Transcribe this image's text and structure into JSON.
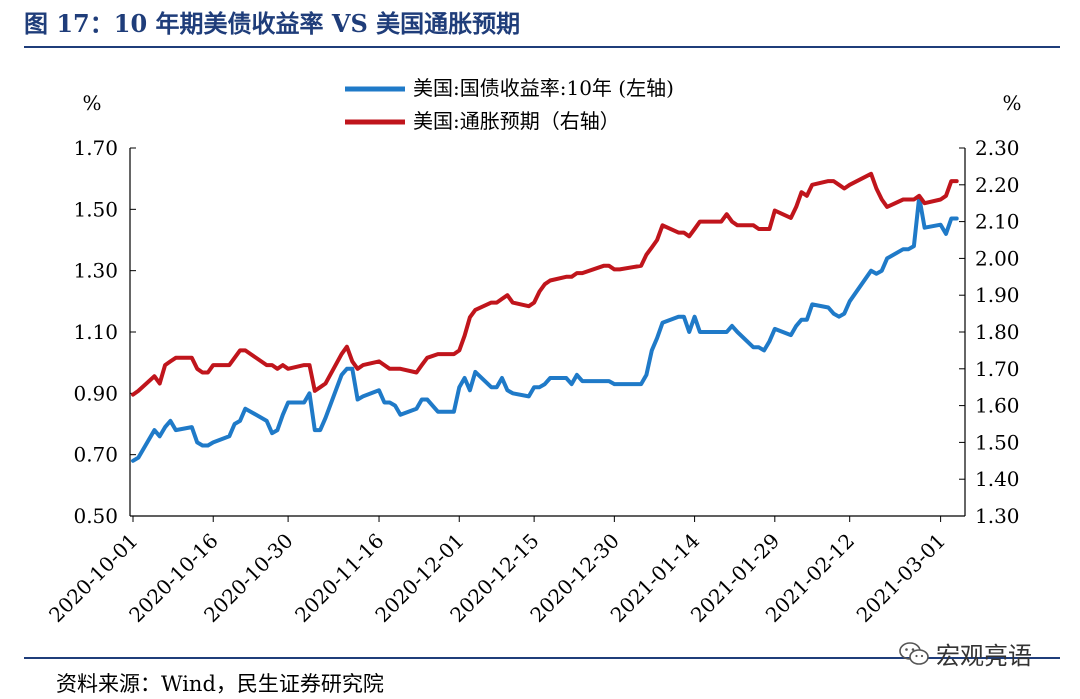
{
  "figure": {
    "title": "图 17：10 年期美债收益率 VS 美国通胀预期",
    "source": "资料来源：Wind，民生证券研究院",
    "watermark": "宏观亮语"
  },
  "colors": {
    "title": "#1f3d7a",
    "yield_line": "#1f7ac8",
    "inflation_line": "#c0151c",
    "rule": "#1f3d7a"
  },
  "chart_data": {
    "type": "line",
    "y_left_unit": "%",
    "y_right_unit": "%",
    "y_left": {
      "lim": [
        0.5,
        1.7
      ],
      "ticks": [
        "0.50",
        "0.70",
        "0.90",
        "1.10",
        "1.30",
        "1.50",
        "1.70"
      ]
    },
    "y_right": {
      "lim": [
        1.3,
        2.3
      ],
      "ticks": [
        "1.30",
        "1.40",
        "1.50",
        "1.60",
        "1.70",
        "1.80",
        "1.90",
        "2.00",
        "2.10",
        "2.20",
        "2.30"
      ]
    },
    "x_ticks": [
      "2020-10-01",
      "2020-10-16",
      "2020-10-30",
      "2020-11-16",
      "2020-12-01",
      "2020-12-15",
      "2020-12-30",
      "2021-01-14",
      "2021-01-29",
      "2021-02-12",
      "2021-03-01"
    ],
    "x_range": [
      "2020-10-01",
      "2021-03-05"
    ],
    "legend_position": "top-center",
    "series": [
      {
        "name": "美国:国债收益率:10年  (左轴)",
        "axis": "left",
        "points": [
          [
            "2020-10-01",
            0.68
          ],
          [
            "2020-10-02",
            0.69
          ],
          [
            "2020-10-05",
            0.78
          ],
          [
            "2020-10-06",
            0.76
          ],
          [
            "2020-10-07",
            0.79
          ],
          [
            "2020-10-08",
            0.81
          ],
          [
            "2020-10-09",
            0.78
          ],
          [
            "2020-10-12",
            0.79
          ],
          [
            "2020-10-13",
            0.74
          ],
          [
            "2020-10-14",
            0.73
          ],
          [
            "2020-10-15",
            0.73
          ],
          [
            "2020-10-16",
            0.74
          ],
          [
            "2020-10-19",
            0.76
          ],
          [
            "2020-10-20",
            0.8
          ],
          [
            "2020-10-21",
            0.81
          ],
          [
            "2020-10-22",
            0.85
          ],
          [
            "2020-10-23",
            0.84
          ],
          [
            "2020-10-26",
            0.81
          ],
          [
            "2020-10-27",
            0.77
          ],
          [
            "2020-10-28",
            0.78
          ],
          [
            "2020-10-29",
            0.83
          ],
          [
            "2020-10-30",
            0.87
          ],
          [
            "2020-11-02",
            0.87
          ],
          [
            "2020-11-03",
            0.9
          ],
          [
            "2020-11-04",
            0.78
          ],
          [
            "2020-11-05",
            0.78
          ],
          [
            "2020-11-06",
            0.82
          ],
          [
            "2020-11-09",
            0.96
          ],
          [
            "2020-11-10",
            0.98
          ],
          [
            "2020-11-11",
            0.98
          ],
          [
            "2020-11-12",
            0.88
          ],
          [
            "2020-11-13",
            0.89
          ],
          [
            "2020-11-16",
            0.91
          ],
          [
            "2020-11-17",
            0.87
          ],
          [
            "2020-11-18",
            0.87
          ],
          [
            "2020-11-19",
            0.86
          ],
          [
            "2020-11-20",
            0.83
          ],
          [
            "2020-11-23",
            0.85
          ],
          [
            "2020-11-24",
            0.88
          ],
          [
            "2020-11-25",
            0.88
          ],
          [
            "2020-11-27",
            0.84
          ],
          [
            "2020-11-30",
            0.84
          ],
          [
            "2020-12-01",
            0.92
          ],
          [
            "2020-12-02",
            0.95
          ],
          [
            "2020-12-03",
            0.91
          ],
          [
            "2020-12-04",
            0.97
          ],
          [
            "2020-12-07",
            0.92
          ],
          [
            "2020-12-08",
            0.92
          ],
          [
            "2020-12-09",
            0.95
          ],
          [
            "2020-12-10",
            0.91
          ],
          [
            "2020-12-11",
            0.9
          ],
          [
            "2020-12-14",
            0.89
          ],
          [
            "2020-12-15",
            0.92
          ],
          [
            "2020-12-16",
            0.92
          ],
          [
            "2020-12-17",
            0.93
          ],
          [
            "2020-12-18",
            0.95
          ],
          [
            "2020-12-21",
            0.95
          ],
          [
            "2020-12-22",
            0.93
          ],
          [
            "2020-12-23",
            0.96
          ],
          [
            "2020-12-24",
            0.94
          ],
          [
            "2020-12-28",
            0.94
          ],
          [
            "2020-12-29",
            0.94
          ],
          [
            "2020-12-30",
            0.93
          ],
          [
            "2020-12-31",
            0.93
          ],
          [
            "2021-01-04",
            0.93
          ],
          [
            "2021-01-05",
            0.96
          ],
          [
            "2021-01-06",
            1.04
          ],
          [
            "2021-01-07",
            1.08
          ],
          [
            "2021-01-08",
            1.13
          ],
          [
            "2021-01-11",
            1.15
          ],
          [
            "2021-01-12",
            1.15
          ],
          [
            "2021-01-13",
            1.1
          ],
          [
            "2021-01-14",
            1.15
          ],
          [
            "2021-01-15",
            1.1
          ],
          [
            "2021-01-19",
            1.1
          ],
          [
            "2021-01-20",
            1.1
          ],
          [
            "2021-01-21",
            1.12
          ],
          [
            "2021-01-22",
            1.1
          ],
          [
            "2021-01-25",
            1.05
          ],
          [
            "2021-01-26",
            1.05
          ],
          [
            "2021-01-27",
            1.04
          ],
          [
            "2021-01-28",
            1.07
          ],
          [
            "2021-01-29",
            1.11
          ],
          [
            "2021-02-01",
            1.09
          ],
          [
            "2021-02-02",
            1.12
          ],
          [
            "2021-02-03",
            1.14
          ],
          [
            "2021-02-04",
            1.14
          ],
          [
            "2021-02-05",
            1.19
          ],
          [
            "2021-02-08",
            1.18
          ],
          [
            "2021-02-09",
            1.16
          ],
          [
            "2021-02-10",
            1.15
          ],
          [
            "2021-02-11",
            1.16
          ],
          [
            "2021-02-12",
            1.2
          ],
          [
            "2021-02-16",
            1.3
          ],
          [
            "2021-02-17",
            1.29
          ],
          [
            "2021-02-18",
            1.3
          ],
          [
            "2021-02-19",
            1.34
          ],
          [
            "2021-02-22",
            1.37
          ],
          [
            "2021-02-23",
            1.37
          ],
          [
            "2021-02-24",
            1.38
          ],
          [
            "2021-02-25",
            1.54
          ],
          [
            "2021-02-26",
            1.44
          ],
          [
            "2021-03-01",
            1.45
          ],
          [
            "2021-03-02",
            1.42
          ],
          [
            "2021-03-03",
            1.47
          ],
          [
            "2021-03-04",
            1.47
          ]
        ]
      },
      {
        "name": "美国:通胀预期（右轴）",
        "axis": "right",
        "points": [
          [
            "2020-10-01",
            1.63
          ],
          [
            "2020-10-02",
            1.64
          ],
          [
            "2020-10-05",
            1.68
          ],
          [
            "2020-10-06",
            1.66
          ],
          [
            "2020-10-07",
            1.71
          ],
          [
            "2020-10-08",
            1.72
          ],
          [
            "2020-10-09",
            1.73
          ],
          [
            "2020-10-12",
            1.73
          ],
          [
            "2020-10-13",
            1.7
          ],
          [
            "2020-10-14",
            1.69
          ],
          [
            "2020-10-15",
            1.69
          ],
          [
            "2020-10-16",
            1.71
          ],
          [
            "2020-10-19",
            1.71
          ],
          [
            "2020-10-20",
            1.73
          ],
          [
            "2020-10-21",
            1.75
          ],
          [
            "2020-10-22",
            1.75
          ],
          [
            "2020-10-23",
            1.74
          ],
          [
            "2020-10-26",
            1.71
          ],
          [
            "2020-10-27",
            1.71
          ],
          [
            "2020-10-28",
            1.7
          ],
          [
            "2020-10-29",
            1.71
          ],
          [
            "2020-10-30",
            1.7
          ],
          [
            "2020-11-02",
            1.71
          ],
          [
            "2020-11-03",
            1.71
          ],
          [
            "2020-11-04",
            1.64
          ],
          [
            "2020-11-05",
            1.65
          ],
          [
            "2020-11-06",
            1.66
          ],
          [
            "2020-11-09",
            1.74
          ],
          [
            "2020-11-10",
            1.76
          ],
          [
            "2020-11-11",
            1.72
          ],
          [
            "2020-11-12",
            1.7
          ],
          [
            "2020-11-13",
            1.71
          ],
          [
            "2020-11-16",
            1.72
          ],
          [
            "2020-11-17",
            1.71
          ],
          [
            "2020-11-18",
            1.7
          ],
          [
            "2020-11-19",
            1.7
          ],
          [
            "2020-11-20",
            1.7
          ],
          [
            "2020-11-23",
            1.69
          ],
          [
            "2020-11-24",
            1.71
          ],
          [
            "2020-11-25",
            1.73
          ],
          [
            "2020-11-27",
            1.74
          ],
          [
            "2020-11-30",
            1.74
          ],
          [
            "2020-12-01",
            1.75
          ],
          [
            "2020-12-02",
            1.79
          ],
          [
            "2020-12-03",
            1.84
          ],
          [
            "2020-12-04",
            1.86
          ],
          [
            "2020-12-07",
            1.88
          ],
          [
            "2020-12-08",
            1.88
          ],
          [
            "2020-12-09",
            1.89
          ],
          [
            "2020-12-10",
            1.9
          ],
          [
            "2020-12-11",
            1.88
          ],
          [
            "2020-12-14",
            1.87
          ],
          [
            "2020-12-15",
            1.88
          ],
          [
            "2020-12-16",
            1.91
          ],
          [
            "2020-12-17",
            1.93
          ],
          [
            "2020-12-18",
            1.94
          ],
          [
            "2020-12-21",
            1.95
          ],
          [
            "2020-12-22",
            1.95
          ],
          [
            "2020-12-23",
            1.96
          ],
          [
            "2020-12-24",
            1.96
          ],
          [
            "2020-12-28",
            1.98
          ],
          [
            "2020-12-29",
            1.98
          ],
          [
            "2020-12-30",
            1.97
          ],
          [
            "2020-12-31",
            1.97
          ],
          [
            "2021-01-04",
            1.98
          ],
          [
            "2021-01-05",
            2.01
          ],
          [
            "2021-01-06",
            2.03
          ],
          [
            "2021-01-07",
            2.05
          ],
          [
            "2021-01-08",
            2.09
          ],
          [
            "2021-01-11",
            2.07
          ],
          [
            "2021-01-12",
            2.07
          ],
          [
            "2021-01-13",
            2.06
          ],
          [
            "2021-01-14",
            2.08
          ],
          [
            "2021-01-15",
            2.1
          ],
          [
            "2021-01-19",
            2.1
          ],
          [
            "2021-01-20",
            2.12
          ],
          [
            "2021-01-21",
            2.1
          ],
          [
            "2021-01-22",
            2.09
          ],
          [
            "2021-01-25",
            2.09
          ],
          [
            "2021-01-26",
            2.08
          ],
          [
            "2021-01-27",
            2.08
          ],
          [
            "2021-01-28",
            2.08
          ],
          [
            "2021-01-29",
            2.13
          ],
          [
            "2021-02-01",
            2.11
          ],
          [
            "2021-02-02",
            2.14
          ],
          [
            "2021-02-03",
            2.18
          ],
          [
            "2021-02-04",
            2.17
          ],
          [
            "2021-02-05",
            2.2
          ],
          [
            "2021-02-08",
            2.21
          ],
          [
            "2021-02-09",
            2.21
          ],
          [
            "2021-02-10",
            2.2
          ],
          [
            "2021-02-11",
            2.19
          ],
          [
            "2021-02-12",
            2.2
          ],
          [
            "2021-02-16",
            2.23
          ],
          [
            "2021-02-17",
            2.19
          ],
          [
            "2021-02-18",
            2.16
          ],
          [
            "2021-02-19",
            2.14
          ],
          [
            "2021-02-22",
            2.16
          ],
          [
            "2021-02-23",
            2.16
          ],
          [
            "2021-02-24",
            2.16
          ],
          [
            "2021-02-25",
            2.17
          ],
          [
            "2021-02-26",
            2.15
          ],
          [
            "2021-03-01",
            2.16
          ],
          [
            "2021-03-02",
            2.17
          ],
          [
            "2021-03-03",
            2.21
          ],
          [
            "2021-03-04",
            2.21
          ]
        ]
      }
    ]
  }
}
